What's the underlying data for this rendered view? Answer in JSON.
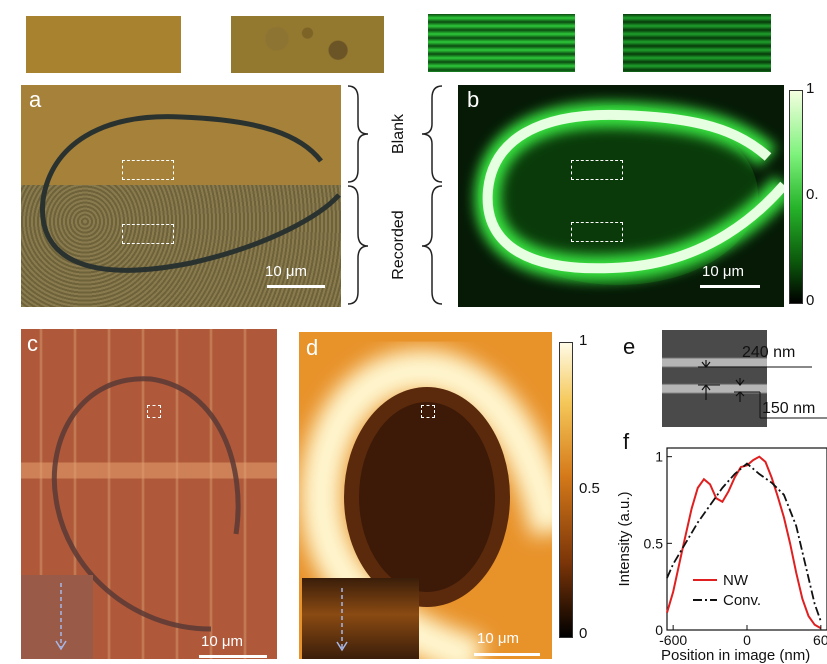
{
  "panels": {
    "a": {
      "letter": "a",
      "scale": "10 μm"
    },
    "b": {
      "letter": "b",
      "scale": "10 μm",
      "cbar_ticks": [
        "1",
        "0.",
        "0"
      ]
    },
    "c": {
      "letter": "c",
      "scale": "10 μm"
    },
    "d": {
      "letter": "d",
      "scale": "10 μm",
      "cbar_ticks": [
        "1",
        "0.5",
        "0"
      ]
    },
    "e": {
      "letter": "e",
      "dim_top": "240 nm",
      "dim_bottom": "150 nm"
    },
    "f": {
      "letter": "f"
    }
  },
  "brace_labels": {
    "blank": "Blank",
    "recorded": "Recorded"
  },
  "chart_data": {
    "type": "line",
    "title": "",
    "xlabel": "Position in image (nm)",
    "ylabel": "Intensity (a.u.)",
    "xlim": [
      -650,
      650
    ],
    "ylim": [
      0,
      1.05
    ],
    "x_ticks": [
      "-600",
      "0",
      "60"
    ],
    "y_ticks": [
      "0",
      "0.5",
      "1"
    ],
    "legend": "bottom-right",
    "series": [
      {
        "name": "NW",
        "color": "#e02020",
        "style": "solid",
        "x": [
          -650,
          -600,
          -520,
          -450,
          -400,
          -350,
          -300,
          -250,
          -200,
          -150,
          -100,
          -50,
          0,
          50,
          100,
          150,
          200,
          250,
          300,
          350,
          400,
          450,
          500,
          550,
          600
        ],
        "y": [
          0.1,
          0.22,
          0.48,
          0.7,
          0.82,
          0.87,
          0.84,
          0.76,
          0.74,
          0.8,
          0.88,
          0.94,
          0.95,
          0.98,
          1.0,
          0.97,
          0.88,
          0.77,
          0.65,
          0.5,
          0.33,
          0.18,
          0.08,
          0.03,
          0.01
        ]
      },
      {
        "name": "Conv.",
        "color": "#111111",
        "style": "dashdot",
        "x": [
          -650,
          -600,
          -500,
          -400,
          -300,
          -200,
          -100,
          0,
          50,
          100,
          200,
          300,
          400,
          500,
          550,
          600
        ],
        "y": [
          0.3,
          0.38,
          0.5,
          0.62,
          0.72,
          0.82,
          0.9,
          0.96,
          0.93,
          0.9,
          0.85,
          0.78,
          0.6,
          0.3,
          0.15,
          0.05
        ]
      }
    ]
  }
}
